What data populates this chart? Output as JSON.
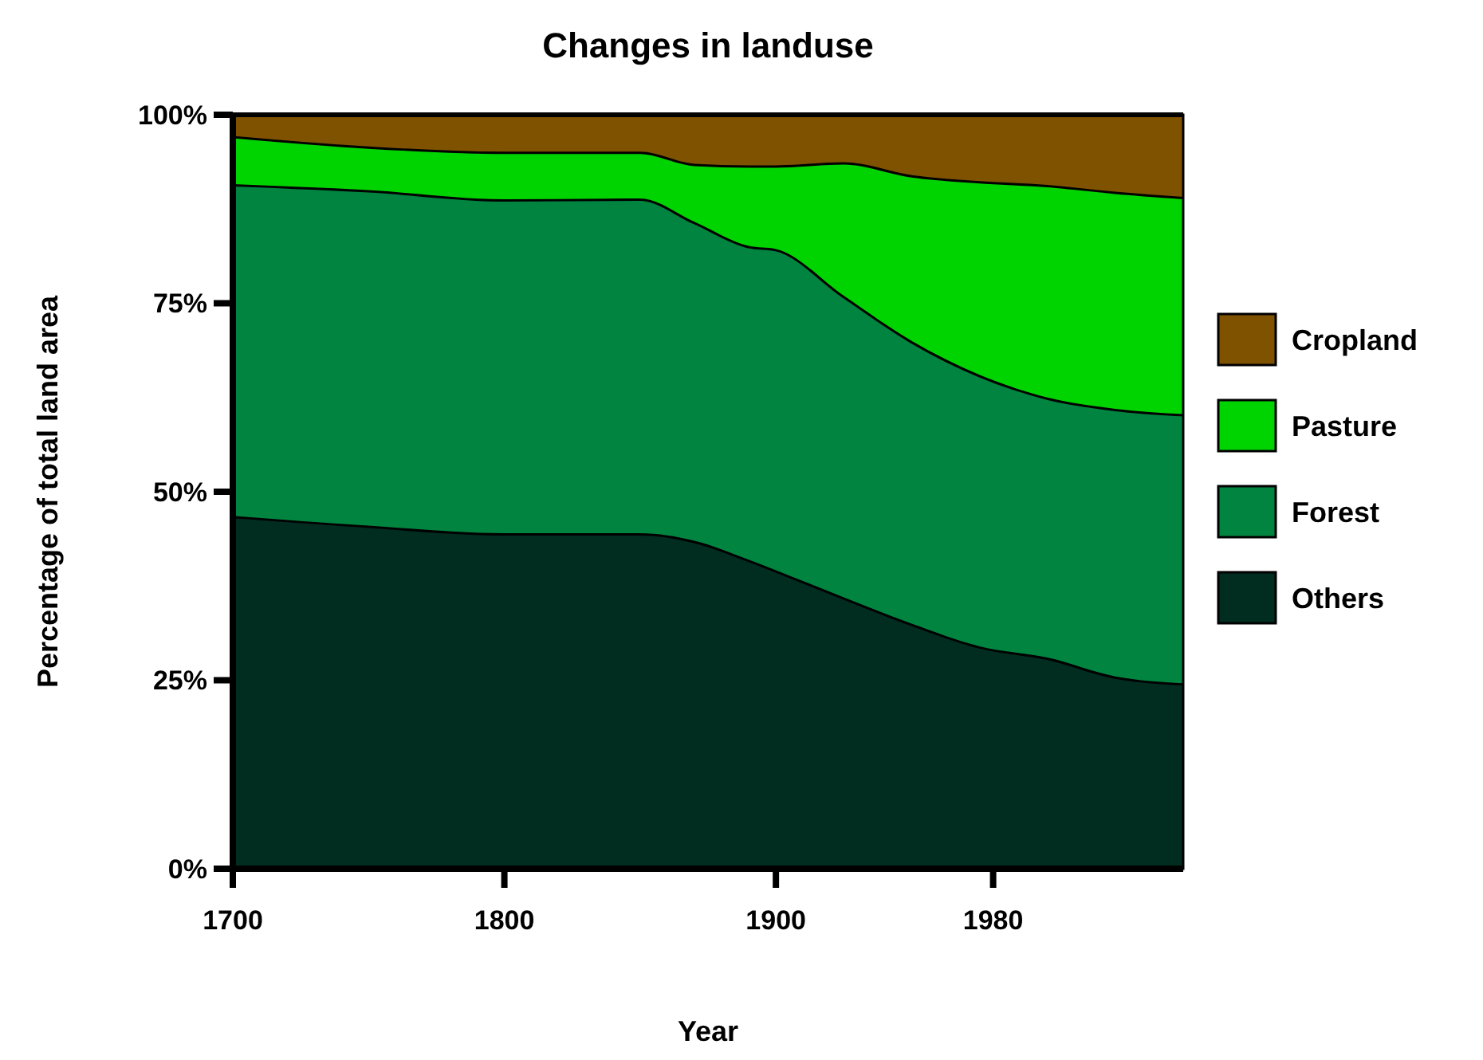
{
  "chart_data": {
    "type": "area",
    "stacked": true,
    "title": "Changes in landuse",
    "xlabel": "Year",
    "ylabel": "Percentage of total land area",
    "x": [
      1700,
      1750,
      1800,
      1850,
      1870,
      1890,
      1900,
      1925,
      1950,
      1975,
      2000,
      2025,
      2050
    ],
    "xlim": [
      1700,
      2050
    ],
    "xticks": [
      1700,
      1800,
      1900,
      1980
    ],
    "ylim": [
      0,
      100
    ],
    "yticks": [
      {
        "value": 0,
        "label": "0%"
      },
      {
        "value": 25,
        "label": "25%"
      },
      {
        "value": 50,
        "label": "50%"
      },
      {
        "value": 75,
        "label": "75%"
      },
      {
        "value": 100,
        "label": "100%"
      }
    ],
    "legend": "right",
    "series": [
      {
        "name": "Others",
        "color": "#002d20",
        "values": [
          46.8,
          45.5,
          44.5,
          44.5,
          43.5,
          41,
          39.6,
          36,
          32.5,
          29.5,
          28,
          25.5,
          24.6
        ]
      },
      {
        "name": "Forest",
        "color": "#008440",
        "values": [
          44.0,
          44.5,
          44.3,
          44.4,
          42.3,
          41.6,
          42.6,
          40,
          37.5,
          36,
          34.5,
          35.5,
          35.7
        ]
      },
      {
        "name": "Pasture",
        "color": "#00d400",
        "values": [
          6.4,
          5.8,
          6.3,
          6.2,
          7.7,
          10.7,
          11.1,
          17.7,
          22,
          25.7,
          28.2,
          28.8,
          28.8
        ]
      },
      {
        "name": "Cropland",
        "color": "#7f5200",
        "values": [
          2.8,
          4.2,
          4.9,
          4.9,
          6.5,
          6.7,
          6.7,
          6.3,
          8,
          8.8,
          9.3,
          10.2,
          10.9
        ]
      }
    ]
  }
}
